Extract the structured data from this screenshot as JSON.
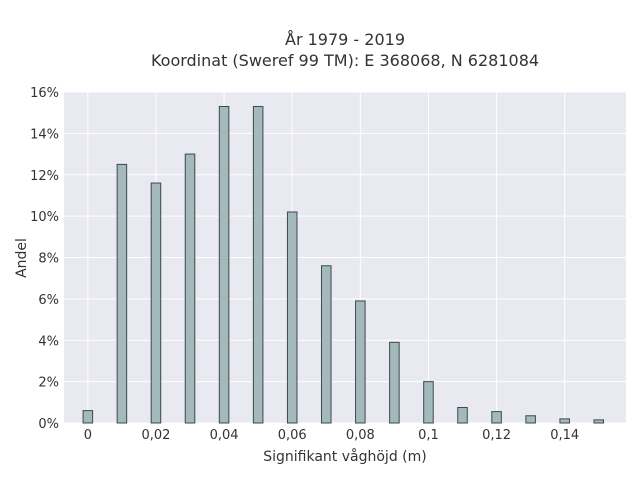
{
  "chart_data": {
    "type": "bar",
    "title_lines": [
      "År 1979 - 2019",
      "Koordinat (Sweref 99 TM): E 368068, N 6281084"
    ],
    "xlabel": "Signifikant våghöjd (m)",
    "ylabel": "Andel",
    "xlim": [
      -0.007,
      0.158
    ],
    "ylim": [
      0,
      0.16
    ],
    "bar_width": 0.0028,
    "x": [
      0,
      0.01,
      0.02,
      0.03,
      0.04,
      0.05,
      0.06,
      0.07,
      0.08,
      0.09,
      0.1,
      0.11,
      0.12,
      0.13,
      0.14,
      0.15
    ],
    "values": [
      0.006,
      0.125,
      0.116,
      0.13,
      0.153,
      0.153,
      0.102,
      0.076,
      0.059,
      0.039,
      0.02,
      0.0075,
      0.0055,
      0.0035,
      0.002,
      0.0015
    ],
    "x_ticks": [
      0,
      0.02,
      0.04,
      0.06,
      0.08,
      0.1,
      0.12,
      0.14
    ],
    "x_tick_labels": [
      "0",
      "0,02",
      "0,04",
      "0,06",
      "0,08",
      "0,1",
      "0,12",
      "0,14"
    ],
    "y_ticks": [
      0,
      0.02,
      0.04,
      0.06,
      0.08,
      0.1,
      0.12,
      0.14,
      0.16
    ],
    "y_tick_labels": [
      "0%",
      "2%",
      "4%",
      "6%",
      "8%",
      "10%",
      "12%",
      "14%",
      "16%"
    ],
    "grid": true,
    "colors": {
      "bar": "#a3b9bb",
      "bar_edge": "#3b4a4b",
      "plot_bg": "#e9e9f1",
      "grid": "#ffffff"
    }
  }
}
